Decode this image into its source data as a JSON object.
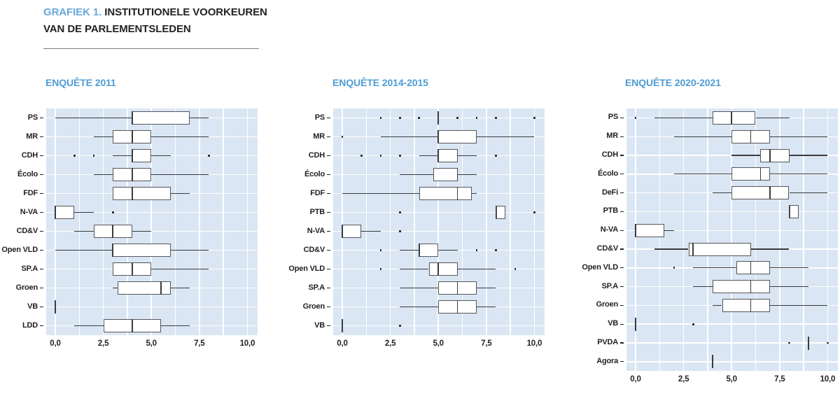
{
  "header": {
    "kicker": "GRAFIEK 1.",
    "title_line1": "INSTITUTIONELE VOORKEUREN",
    "title_line2": "VAN DE PARLEMENTSLEDEN"
  },
  "colors": {
    "accent_blue": "#4E9CD3",
    "kicker_blue": "#6BA9D8",
    "title_text": "#262224",
    "plot_background": "#DAE6F3",
    "gridline": "#FFFFFF",
    "box_fill": "#FFFFFF",
    "box_border": "#55565A",
    "whisker": "#3B3C3E",
    "outlier": "#141414",
    "axis_text": "#231F20"
  },
  "chart_data": {
    "type": "boxplot",
    "orientation": "horizontal",
    "x_axis": {
      "min": 0,
      "max": 10,
      "tick_values": [
        0,
        2.5,
        5,
        7.5,
        10
      ],
      "tick_labels": [
        "0,0",
        "2,5",
        "5,0",
        "7,5",
        "10,0"
      ],
      "gridline_step": 1.25,
      "grid": true
    },
    "panels": [
      {
        "title": "ENQUÊTE 2011",
        "rows": [
          {
            "party": "PS",
            "low": 0,
            "q1": 4,
            "median": 4,
            "q3": 7,
            "high": 8,
            "outliers": []
          },
          {
            "party": "MR",
            "low": 2,
            "q1": 3,
            "median": 4,
            "q3": 5,
            "high": 8,
            "outliers": []
          },
          {
            "party": "CDH",
            "low": 3,
            "q1": 4,
            "median": 4,
            "q3": 5,
            "high": 6,
            "outliers": [
              1,
              2,
              8
            ]
          },
          {
            "party": "Écolo",
            "low": 2,
            "q1": 3,
            "median": 4,
            "q3": 5,
            "high": 8,
            "outliers": []
          },
          {
            "party": "FDF",
            "low": 3,
            "q1": 3,
            "median": 4,
            "q3": 6,
            "high": 7,
            "outliers": []
          },
          {
            "party": "N-VA",
            "low": 0,
            "q1": 0,
            "median": 0,
            "q3": 1,
            "high": 2,
            "outliers": [
              3
            ]
          },
          {
            "party": "CD&V",
            "low": 1,
            "q1": 2,
            "median": 3,
            "q3": 4,
            "high": 5,
            "outliers": []
          },
          {
            "party": "Open VLD",
            "low": 0,
            "q1": 3,
            "median": 3,
            "q3": 6,
            "high": 8,
            "outliers": []
          },
          {
            "party": "SP.A",
            "low": 3,
            "q1": 3,
            "median": 4,
            "q3": 5,
            "high": 8,
            "outliers": []
          },
          {
            "party": "Groen",
            "low": 3,
            "q1": 3.25,
            "median": 5.5,
            "q3": 6,
            "high": 7,
            "outliers": []
          },
          {
            "party": "VB",
            "low": 0,
            "q1": 0,
            "median": 0,
            "q3": 0,
            "high": 0,
            "outliers": []
          },
          {
            "party": "LDD",
            "low": 1,
            "q1": 2.5,
            "median": 4,
            "q3": 5.5,
            "high": 7,
            "outliers": []
          }
        ]
      },
      {
        "title": "ENQUÊTE 2014-2015",
        "rows": [
          {
            "party": "PS",
            "low": 5,
            "q1": 5,
            "median": 5,
            "q3": 5,
            "high": 5,
            "outliers": [
              2,
              3,
              4,
              6,
              7,
              8,
              10
            ]
          },
          {
            "party": "MR",
            "low": 2,
            "q1": 5,
            "median": 5,
            "q3": 7,
            "high": 10,
            "outliers": [
              0
            ]
          },
          {
            "party": "CDH",
            "low": 4,
            "q1": 5,
            "median": 5,
            "q3": 6,
            "high": 7,
            "outliers": [
              1,
              2,
              3,
              8
            ]
          },
          {
            "party": "Écolo",
            "low": 3,
            "q1": 4.75,
            "median": 6,
            "q3": 6,
            "high": 7,
            "outliers": []
          },
          {
            "party": "FDF",
            "low": 0,
            "q1": 4,
            "median": 6,
            "q3": 6.75,
            "high": 7,
            "outliers": []
          },
          {
            "party": "PTB",
            "low": 8,
            "q1": 8,
            "median": 8,
            "q3": 8.5,
            "high": 8.5,
            "outliers": [
              3,
              10
            ]
          },
          {
            "party": "N-VA",
            "low": 0,
            "q1": 0,
            "median": 0,
            "q3": 1,
            "high": 2,
            "outliers": [
              3
            ]
          },
          {
            "party": "CD&V",
            "low": 3,
            "q1": 4,
            "median": 4,
            "q3": 5,
            "high": 6,
            "outliers": [
              2,
              7,
              8
            ]
          },
          {
            "party": "Open VLD",
            "low": 3,
            "q1": 4.5,
            "median": 5,
            "q3": 6,
            "high": 8,
            "outliers": [
              2,
              9
            ]
          },
          {
            "party": "SP.A",
            "low": 3,
            "q1": 5,
            "median": 6,
            "q3": 7,
            "high": 8,
            "outliers": []
          },
          {
            "party": "Groen",
            "low": 3,
            "q1": 5,
            "median": 6,
            "q3": 7,
            "high": 8,
            "outliers": []
          },
          {
            "party": "VB",
            "low": 0,
            "q1": 0,
            "median": 0,
            "q3": 0,
            "high": 0,
            "outliers": [
              3
            ]
          }
        ]
      },
      {
        "title": "ENQUÊTE 2020-2021",
        "rows": [
          {
            "party": "PS",
            "low": 1,
            "q1": 4,
            "median": 5,
            "q3": 6.25,
            "high": 8,
            "outliers": [
              0
            ]
          },
          {
            "party": "MR",
            "low": 2,
            "q1": 5,
            "median": 6,
            "q3": 7,
            "high": 10,
            "outliers": []
          },
          {
            "party": "CDH",
            "low": 5,
            "q1": 6.5,
            "median": 7,
            "q3": 8,
            "high": 10,
            "outliers": []
          },
          {
            "party": "Écolo",
            "low": 2,
            "q1": 5,
            "median": 6.5,
            "q3": 7,
            "high": 10,
            "outliers": []
          },
          {
            "party": "DeFi",
            "low": 4,
            "q1": 5,
            "median": 7,
            "q3": 8,
            "high": 10,
            "outliers": []
          },
          {
            "party": "PTB",
            "low": 8,
            "q1": 8,
            "median": 8,
            "q3": 8.5,
            "high": 8.5,
            "outliers": []
          },
          {
            "party": "N-VA",
            "low": 0,
            "q1": 0,
            "median": 0,
            "q3": 1.5,
            "high": 2,
            "outliers": []
          },
          {
            "party": "CD&V",
            "low": 1,
            "q1": 2.75,
            "median": 3,
            "q3": 6,
            "high": 8,
            "outliers": []
          },
          {
            "party": "Open VLD",
            "low": 3,
            "q1": 5.25,
            "median": 6,
            "q3": 7,
            "high": 9,
            "outliers": [
              2
            ]
          },
          {
            "party": "SP.A",
            "low": 3,
            "q1": 4,
            "median": 6,
            "q3": 7,
            "high": 9,
            "outliers": []
          },
          {
            "party": "Groen",
            "low": 4,
            "q1": 4.5,
            "median": 6,
            "q3": 7,
            "high": 10,
            "outliers": []
          },
          {
            "party": "VB",
            "low": 0,
            "q1": 0,
            "median": 0,
            "q3": 0,
            "high": 0,
            "outliers": [
              3
            ]
          },
          {
            "party": "PVDA",
            "low": 9,
            "q1": 9,
            "median": 9,
            "q3": 9,
            "high": 9,
            "outliers": [
              8,
              10
            ]
          },
          {
            "party": "Agora",
            "low": 4,
            "q1": 4,
            "median": 4,
            "q3": 4,
            "high": 4,
            "outliers": []
          }
        ]
      }
    ]
  }
}
